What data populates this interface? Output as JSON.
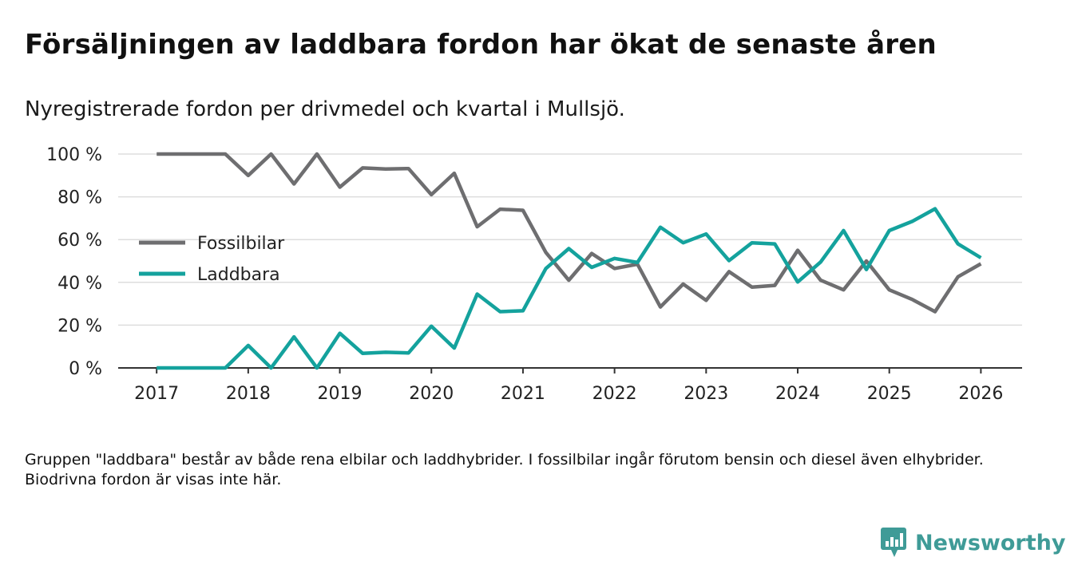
{
  "title": "Försäljningen av laddbara fordon har ökat de senaste åren",
  "subtitle": "Nyregistrerade fordon per drivmedel och kvartal i Mullsjö.",
  "footnote": "Gruppen \"laddbara\" består av både rena elbilar och laddhybrider. I fossilbilar ingår förutom bensin och diesel även elhybrider. Biodrivna fordon är visas inte här.",
  "brand": {
    "name": "Newsworthy",
    "icon": "bar-chart-speech-icon"
  },
  "colors": {
    "fossil": "#6e6e70",
    "laddbara": "#14a29d",
    "grid": "#dddddd",
    "axis": "#333333",
    "brand": "#3f9b97"
  },
  "chart_data": {
    "type": "line",
    "title": "Försäljningen av laddbara fordon har ökat de senaste åren",
    "xlabel": "",
    "ylabel": "",
    "ylim": [
      0,
      100
    ],
    "xlim": [
      2016.58,
      2026.45
    ],
    "y_ticks": [
      0,
      20,
      40,
      60,
      80,
      100
    ],
    "y_tick_labels": [
      "0 %",
      "20 %",
      "40 %",
      "60 %",
      "80 %",
      "100 %"
    ],
    "x_ticks": [
      2017,
      2018,
      2019,
      2020,
      2021,
      2022,
      2023,
      2024,
      2025,
      2026
    ],
    "x_tick_labels": [
      "2017",
      "2018",
      "2019",
      "2020",
      "2021",
      "2022",
      "2023",
      "2024",
      "2025",
      "2026"
    ],
    "legend_position": "left-middle",
    "x": [
      2017,
      2017.25,
      2017.5,
      2017.75,
      2018,
      2018.25,
      2018.5,
      2018.75,
      2019,
      2019.25,
      2019.5,
      2019.75,
      2020,
      2020.25,
      2020.5,
      2020.75,
      2021,
      2021.25,
      2021.5,
      2021.75,
      2022,
      2022.25,
      2022.5,
      2022.75,
      2023,
      2023.25,
      2023.5,
      2023.75,
      2024,
      2024.25,
      2024.5,
      2024.75,
      2025,
      2025.25,
      2025.5,
      2025.75,
      2026
    ],
    "series": [
      {
        "name": "Fossilbilar",
        "color": "#6e6e70",
        "values": [
          100,
          100,
          100,
          100,
          90,
          100,
          86,
          100,
          84.5,
          93.5,
          93,
          93.2,
          81,
          91,
          66,
          74.2,
          73.7,
          54,
          41,
          53.5,
          46.5,
          48.5,
          28.5,
          39.2,
          31.6,
          45,
          37.8,
          38.6,
          55,
          41,
          36.5,
          50,
          36.5,
          32,
          26.3,
          42.6,
          48.7
        ]
      },
      {
        "name": "Laddbara",
        "color": "#14a29d",
        "values": [
          0,
          0,
          0,
          0,
          10.5,
          0,
          14.5,
          0,
          16.2,
          6.8,
          7.3,
          7,
          19.5,
          9.3,
          34.5,
          26.3,
          26.7,
          46.5,
          55.8,
          47,
          51.2,
          49.3,
          65.8,
          58.5,
          62.6,
          50.2,
          58.5,
          58,
          40.2,
          49.5,
          64.2,
          46,
          64.2,
          68.5,
          74.4,
          58,
          51.5
        ]
      }
    ]
  }
}
